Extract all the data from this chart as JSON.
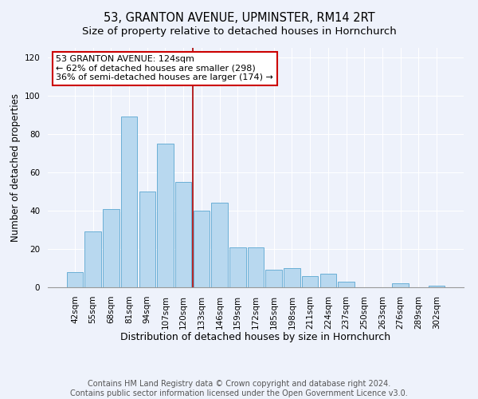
{
  "title": "53, GRANTON AVENUE, UPMINSTER, RM14 2RT",
  "subtitle": "Size of property relative to detached houses in Hornchurch",
  "xlabel": "Distribution of detached houses by size in Hornchurch",
  "ylabel": "Number of detached properties",
  "bar_labels": [
    "42sqm",
    "55sqm",
    "68sqm",
    "81sqm",
    "94sqm",
    "107sqm",
    "120sqm",
    "133sqm",
    "146sqm",
    "159sqm",
    "172sqm",
    "185sqm",
    "198sqm",
    "211sqm",
    "224sqm",
    "237sqm",
    "250sqm",
    "263sqm",
    "276sqm",
    "289sqm",
    "302sqm"
  ],
  "bar_values": [
    8,
    29,
    41,
    89,
    50,
    75,
    55,
    40,
    44,
    21,
    21,
    9,
    10,
    6,
    7,
    3,
    0,
    0,
    2,
    0,
    1
  ],
  "bar_color": "#b8d8ef",
  "bar_edge_color": "#6aafd6",
  "vline_color": "#aa0000",
  "annotation_line1": "53 GRANTON AVENUE: 124sqm",
  "annotation_line2": "← 62% of detached houses are smaller (298)",
  "annotation_line3": "36% of semi-detached houses are larger (174) →",
  "annotation_box_edge": "#cc0000",
  "annotation_box_face": "#ffffff",
  "ylim": [
    0,
    125
  ],
  "yticks": [
    0,
    20,
    40,
    60,
    80,
    100,
    120
  ],
  "footer_line1": "Contains HM Land Registry data © Crown copyright and database right 2024.",
  "footer_line2": "Contains public sector information licensed under the Open Government Licence v3.0.",
  "bg_color": "#eef2fb",
  "grid_color": "#ffffff",
  "title_fontsize": 10.5,
  "xlabel_fontsize": 9,
  "ylabel_fontsize": 8.5,
  "tick_fontsize": 7.5,
  "annotation_fontsize": 8,
  "footer_fontsize": 7
}
